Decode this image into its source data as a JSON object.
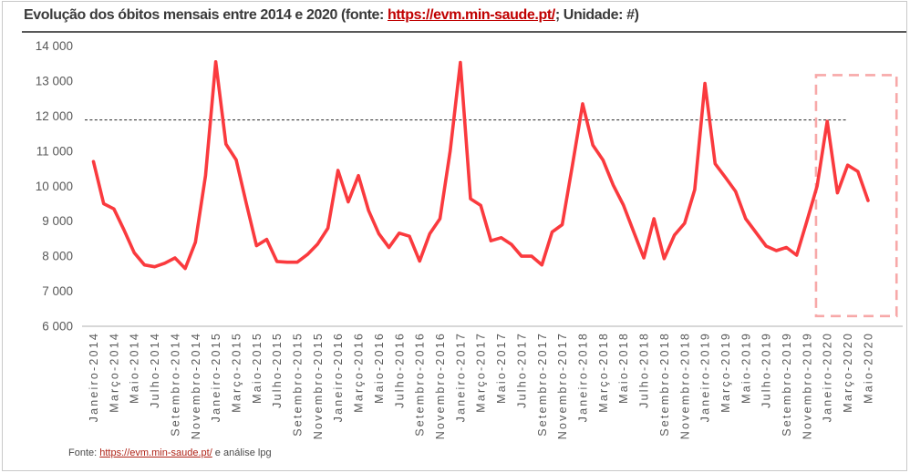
{
  "header": {
    "title_prefix": "Evolução dos óbitos mensais entre 2014 e 2020 (fonte: ",
    "source_link": "https://evm.min-saude.pt/",
    "title_suffix": "; Unidade: #)"
  },
  "footer": {
    "prefix": "Fonte: ",
    "source_link": "https://evm.min-saude.pt/",
    "suffix": " e análise lpg"
  },
  "colors": {
    "line": "#fa3a3e",
    "highlight_box": "#f7a8a8",
    "reference_line": "#404040",
    "axis_line": "#bfbfbf",
    "tick_text": "#595959",
    "title_text": "#3a3a3a",
    "link_red": "#c00000",
    "footer_link": "#b02418",
    "title_rule": "#595959",
    "frame_border": "#c9c9c9"
  },
  "chart_data": {
    "type": "line",
    "title": "Evolução dos óbitos mensais entre 2014 e 2020",
    "unit": "#",
    "ylim": [
      6000,
      14000
    ],
    "y_tick_step": 1000,
    "grid": "off",
    "legend": "none",
    "y_ticks": [
      {
        "label": "14 000",
        "value": 14000
      },
      {
        "label": "13 000",
        "value": 13000
      },
      {
        "label": "12 000",
        "value": 12000
      },
      {
        "label": "11 000",
        "value": 11000
      },
      {
        "label": "10 000",
        "value": 10000
      },
      {
        "label": "9 000",
        "value": 9000
      },
      {
        "label": "8 000",
        "value": 8000
      },
      {
        "label": "7 000",
        "value": 7000
      },
      {
        "label": "6 000",
        "value": 6000
      }
    ],
    "x_tick_every_n_months": 2,
    "x_tick_labels": [
      "Janeiro-2014",
      "Março-2014",
      "Maio-2014",
      "Julho-2014",
      "Setembro-2014",
      "Novembro-2014",
      "Janeiro-2015",
      "Março-2015",
      "Maio-2015",
      "Julho-2015",
      "Setembro-2015",
      "Novembro-2015",
      "Janeiro-2016",
      "Março-2016",
      "Maio-2016",
      "Julho-2016",
      "Setembro-2016",
      "Novembro-2016",
      "Janeiro-2017",
      "Março-2017",
      "Maio-2017",
      "Julho-2017",
      "Setembro-2017",
      "Novembro-2017",
      "Janeiro-2018",
      "Março-2018",
      "Maio-2018",
      "Julho-2018",
      "Setembro-2018",
      "Novembro-2018",
      "Janeiro-2019",
      "Março-2019",
      "Maio-2019",
      "Julho-2019",
      "Setembro-2019",
      "Novembro-2019",
      "Janeiro-2020",
      "Março-2020",
      "Maio-2020"
    ],
    "series": [
      {
        "name": "Óbitos mensais",
        "start_month": "Janeiro-2014",
        "end_month": "Maio-2020",
        "values": [
          10700,
          9500,
          9350,
          8750,
          8100,
          7750,
          7700,
          7800,
          7950,
          7650,
          8400,
          10300,
          13550,
          11200,
          10750,
          9500,
          8300,
          8480,
          7850,
          7830,
          7830,
          8050,
          8350,
          8800,
          10450,
          9550,
          10300,
          9300,
          8640,
          8250,
          8660,
          8570,
          7860,
          8640,
          9070,
          11000,
          13530,
          9640,
          9450,
          8440,
          8530,
          8340,
          8000,
          8000,
          7750,
          8690,
          8900,
          10600,
          12350,
          11170,
          10740,
          10030,
          9460,
          8700,
          7950,
          9070,
          7930,
          8600,
          8940,
          9900,
          12930,
          10640,
          10250,
          9850,
          9070,
          8680,
          8290,
          8160,
          8250,
          8030,
          9000,
          10000,
          11850,
          9810,
          10600,
          10420,
          9590
        ]
      }
    ],
    "annotations": {
      "reference_line": {
        "value": 11890,
        "style": "dashed",
        "x_start_month_index": -0.85,
        "x_end_month_index": 74
      },
      "highlight_box": {
        "style": "dashed",
        "x_start_month_index": 70.9,
        "x_end_month_index": 78.8,
        "y_top_value": 13170,
        "y_bottom_value": 6290
      }
    }
  }
}
